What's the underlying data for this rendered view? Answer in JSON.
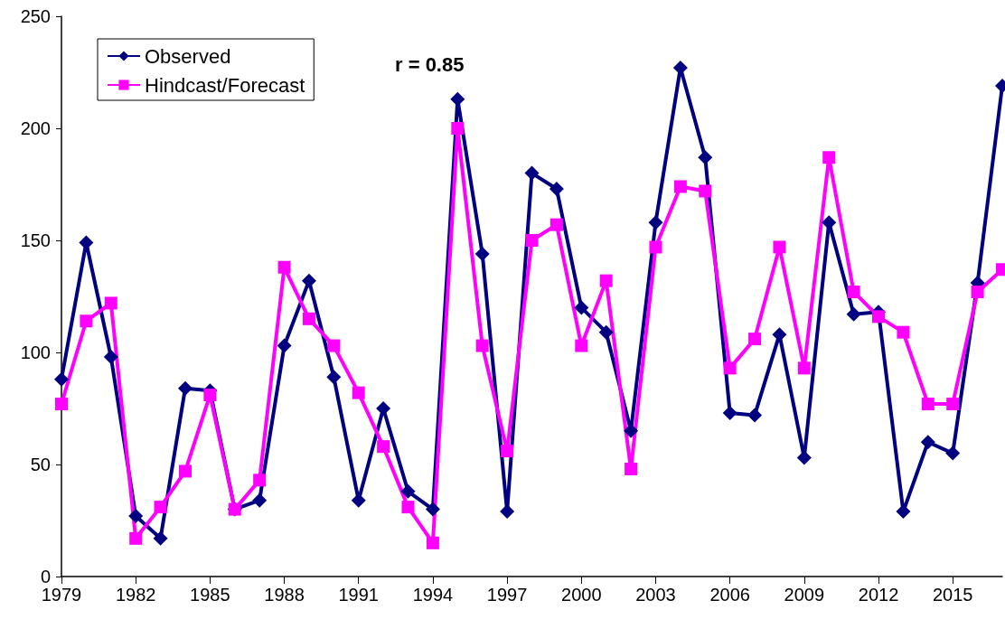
{
  "chart_data": {
    "type": "line",
    "annotations": [
      "r = 0.85"
    ],
    "categories": [
      "1979",
      null,
      null,
      "1982",
      null,
      null,
      "1985",
      null,
      null,
      "1988",
      null,
      null,
      "1991",
      null,
      null,
      "1994",
      null,
      null,
      "1997",
      null,
      null,
      "2000",
      null,
      null,
      "2003",
      null,
      null,
      "2006",
      null,
      null,
      "2009",
      null,
      null,
      "2012",
      null,
      null,
      "2015",
      null,
      null
    ],
    "series": [
      {
        "name": "Observed",
        "color": "#000080",
        "marker": "diamond",
        "values": [
          88,
          149,
          98,
          27,
          17,
          84,
          83,
          30,
          34,
          103,
          132,
          89,
          34,
          75,
          38,
          30,
          213,
          144,
          29,
          180,
          173,
          120,
          109,
          65,
          158,
          227,
          187,
          73,
          72,
          108,
          53,
          158,
          117,
          118,
          29,
          60,
          55,
          131,
          219
        ]
      },
      {
        "name": "Hindcast/Forecast",
        "color": "#ff00ff",
        "marker": "square",
        "values": [
          77,
          114,
          122,
          17,
          31,
          47,
          81,
          30,
          43,
          138,
          115,
          103,
          82,
          58,
          31,
          15,
          200,
          103,
          56,
          150,
          157,
          103,
          132,
          48,
          147,
          174,
          172,
          93,
          106,
          147,
          93,
          187,
          127,
          116,
          109,
          77,
          77,
          127,
          137
        ]
      }
    ],
    "ylim": [
      0,
      250
    ],
    "yticks": [
      0,
      50,
      100,
      150,
      200,
      250
    ],
    "grid": false,
    "legend": "top left",
    "line_style": "solid"
  }
}
